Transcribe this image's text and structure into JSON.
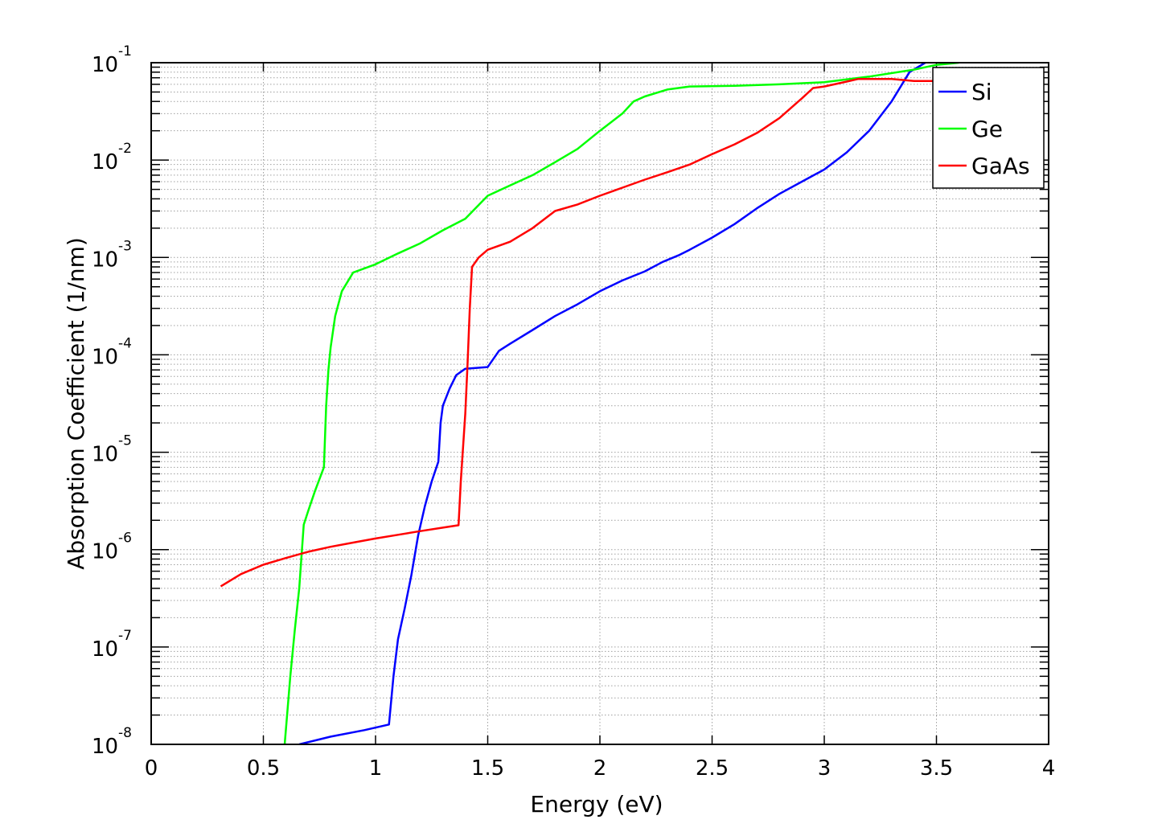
{
  "chart_data": {
    "type": "line",
    "title": "",
    "xlabel": "Energy (eV)",
    "ylabel": "Absorption Coefficient (1/nm)",
    "xlim": [
      0,
      4
    ],
    "ylim": [
      1e-08,
      0.1
    ],
    "yscale": "log",
    "grid": true,
    "legend_position": "top-right",
    "x_ticks": [
      "0",
      "0.5",
      "1",
      "1.5",
      "2",
      "2.5",
      "3",
      "3.5",
      "4"
    ],
    "y_ticks": [
      {
        "base": "10",
        "exp": "-8"
      },
      {
        "base": "10",
        "exp": "-7"
      },
      {
        "base": "10",
        "exp": "-6"
      },
      {
        "base": "10",
        "exp": "-5"
      },
      {
        "base": "10",
        "exp": "-4"
      },
      {
        "base": "10",
        "exp": "-3"
      },
      {
        "base": "10",
        "exp": "-2"
      },
      {
        "base": "10",
        "exp": "-1"
      }
    ],
    "series": [
      {
        "name": "Si",
        "color": "#0000ff",
        "points": [
          [
            0.66,
            1e-08
          ],
          [
            0.8,
            1.2e-08
          ],
          [
            0.95,
            1.4e-08
          ],
          [
            1.06,
            1.6e-08
          ],
          [
            1.08,
            5e-08
          ],
          [
            1.1,
            1.2e-07
          ],
          [
            1.13,
            2.5e-07
          ],
          [
            1.16,
            5.5e-07
          ],
          [
            1.19,
            1.4e-06
          ],
          [
            1.22,
            2.8e-06
          ],
          [
            1.25,
            5e-06
          ],
          [
            1.28,
            8e-06
          ],
          [
            1.29,
            2e-05
          ],
          [
            1.3,
            3e-05
          ],
          [
            1.33,
            4.5e-05
          ],
          [
            1.36,
            6.2e-05
          ],
          [
            1.4,
            7.2e-05
          ],
          [
            1.5,
            7.5e-05
          ],
          [
            1.55,
            0.00011
          ],
          [
            1.6,
            0.00013
          ],
          [
            1.7,
            0.00018
          ],
          [
            1.8,
            0.00025
          ],
          [
            1.9,
            0.00033
          ],
          [
            2.0,
            0.00045
          ],
          [
            2.1,
            0.00058
          ],
          [
            2.2,
            0.00072
          ],
          [
            2.28,
            0.0009
          ],
          [
            2.35,
            0.00105
          ],
          [
            2.4,
            0.0012
          ],
          [
            2.5,
            0.0016
          ],
          [
            2.6,
            0.0022
          ],
          [
            2.7,
            0.0032
          ],
          [
            2.8,
            0.0045
          ],
          [
            2.9,
            0.006
          ],
          [
            3.0,
            0.008
          ],
          [
            3.1,
            0.012
          ],
          [
            3.2,
            0.02
          ],
          [
            3.3,
            0.04
          ],
          [
            3.38,
            0.08
          ],
          [
            3.45,
            0.1
          ]
        ]
      },
      {
        "name": "Ge",
        "color": "#00ff00",
        "points": [
          [
            0.595,
            1e-08
          ],
          [
            0.62,
            5e-08
          ],
          [
            0.64,
            1.5e-07
          ],
          [
            0.66,
            4e-07
          ],
          [
            0.68,
            1.8e-06
          ],
          [
            0.7,
            2.5e-06
          ],
          [
            0.73,
            4e-06
          ],
          [
            0.77,
            7e-06
          ],
          [
            0.78,
            3e-05
          ],
          [
            0.79,
            7e-05
          ],
          [
            0.8,
            0.00012
          ],
          [
            0.82,
            0.00025
          ],
          [
            0.85,
            0.00045
          ],
          [
            0.9,
            0.0007
          ],
          [
            1.0,
            0.00085
          ],
          [
            1.1,
            0.0011
          ],
          [
            1.2,
            0.0014
          ],
          [
            1.3,
            0.0019
          ],
          [
            1.4,
            0.0025
          ],
          [
            1.5,
            0.0043
          ],
          [
            1.6,
            0.0055
          ],
          [
            1.7,
            0.007
          ],
          [
            1.8,
            0.0095
          ],
          [
            1.9,
            0.013
          ],
          [
            2.0,
            0.02
          ],
          [
            2.1,
            0.03
          ],
          [
            2.15,
            0.04
          ],
          [
            2.2,
            0.045
          ],
          [
            2.3,
            0.053
          ],
          [
            2.4,
            0.057
          ],
          [
            2.6,
            0.058
          ],
          [
            2.8,
            0.06
          ],
          [
            3.0,
            0.063
          ],
          [
            3.2,
            0.072
          ],
          [
            3.4,
            0.085
          ],
          [
            3.5,
            0.095
          ],
          [
            3.6,
            0.1
          ]
        ]
      },
      {
        "name": "GaAs",
        "color": "#ff0000",
        "points": [
          [
            0.31,
            4.2e-07
          ],
          [
            0.4,
            5.6e-07
          ],
          [
            0.5,
            7e-07
          ],
          [
            0.6,
            8.2e-07
          ],
          [
            0.7,
            9.5e-07
          ],
          [
            0.8,
            1.07e-06
          ],
          [
            0.9,
            1.18e-06
          ],
          [
            1.0,
            1.3e-06
          ],
          [
            1.1,
            1.42e-06
          ],
          [
            1.2,
            1.55e-06
          ],
          [
            1.3,
            1.68e-06
          ],
          [
            1.37,
            1.78e-06
          ],
          [
            1.38,
            5e-06
          ],
          [
            1.4,
            2.5e-05
          ],
          [
            1.41,
            8e-05
          ],
          [
            1.42,
            0.0003
          ],
          [
            1.43,
            0.0008
          ],
          [
            1.46,
            0.001
          ],
          [
            1.5,
            0.0012
          ],
          [
            1.6,
            0.00145
          ],
          [
            1.7,
            0.002
          ],
          [
            1.8,
            0.003
          ],
          [
            1.9,
            0.0035
          ],
          [
            2.0,
            0.0043
          ],
          [
            2.1,
            0.0052
          ],
          [
            2.2,
            0.0063
          ],
          [
            2.3,
            0.0075
          ],
          [
            2.4,
            0.009
          ],
          [
            2.5,
            0.0115
          ],
          [
            2.6,
            0.0145
          ],
          [
            2.7,
            0.019
          ],
          [
            2.8,
            0.027
          ],
          [
            2.9,
            0.043
          ],
          [
            2.95,
            0.055
          ],
          [
            3.0,
            0.057
          ],
          [
            3.1,
            0.064
          ],
          [
            3.15,
            0.068
          ],
          [
            3.3,
            0.068
          ],
          [
            3.4,
            0.065
          ],
          [
            3.6,
            0.065
          ]
        ]
      }
    ]
  }
}
